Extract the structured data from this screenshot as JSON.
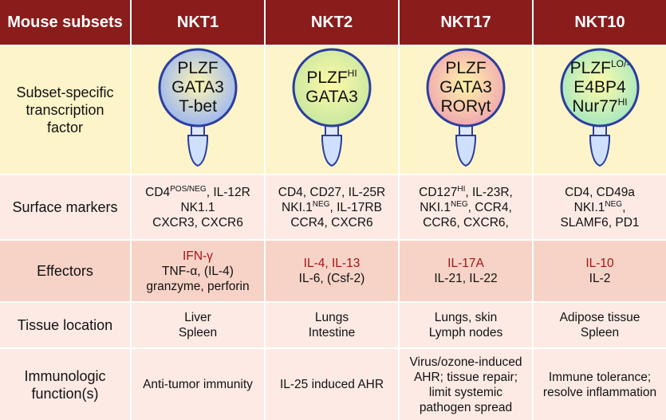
{
  "header": [
    "Mouse subsets",
    "NKT1",
    "NKT2",
    "NKT17",
    "NKT10"
  ],
  "rows": [
    {
      "label": [
        "Subset-specific",
        "transcription",
        "factor"
      ],
      "cells": [
        [
          [
            "PLZF"
          ],
          [
            "GATA3"
          ],
          [
            "T-bet"
          ]
        ],
        [
          [
            "PLZF",
            "HI"
          ],
          [
            "GATA3"
          ]
        ],
        [
          [
            "PLZF"
          ],
          [
            "GATA3"
          ],
          [
            "RORγt"
          ]
        ],
        [
          [
            "PLZF",
            "LO/-"
          ],
          [
            "E4BP4"
          ],
          [
            "Nur77",
            "HI"
          ]
        ]
      ]
    },
    {
      "label": [
        "Surface markers"
      ],
      "cells": [
        [
          [
            "CD4",
            "POS/NEG",
            ", IL-12R"
          ],
          [
            "NK1.1"
          ],
          [
            "CXCR3, CXCR6"
          ]
        ],
        [
          [
            "CD4, CD27, IL-25R"
          ],
          [
            "NKI.1",
            "NEG",
            ", IL-17RB"
          ],
          [
            "CCR4, CXCR6"
          ]
        ],
        [
          [
            "CD127",
            "HI",
            ", IL-23R,"
          ],
          [
            "NKI.1",
            "NEG",
            ", CCR4,"
          ],
          [
            "CCR6, CXCR6,"
          ]
        ],
        [
          [
            "CD4, CD49a"
          ],
          [
            "NKI.1",
            "NEG",
            ","
          ],
          [
            "SLAMF6, PD1"
          ]
        ]
      ]
    },
    {
      "label": [
        "Effectors"
      ],
      "cells": [
        [
          [
            "IFN-γ"
          ],
          [
            "TNF-α, (IL-4)"
          ],
          [
            "granzyme, perforin"
          ]
        ],
        [
          [
            "IL-4, IL-13"
          ],
          [
            "IL-6, (Csf-2)"
          ]
        ],
        [
          [
            "IL-17A"
          ],
          [
            "IL-21, IL-22"
          ]
        ],
        [
          [
            "IL-10"
          ],
          [
            "IL-2"
          ]
        ]
      ]
    },
    {
      "label": [
        "Tissue location"
      ],
      "cells": [
        [
          [
            "Liver"
          ],
          [
            "Spleen"
          ]
        ],
        [
          [
            "Lungs"
          ],
          [
            "Intestine"
          ]
        ],
        [
          [
            "Lungs, skin"
          ],
          [
            "Lymph nodes"
          ]
        ],
        [
          [
            "Adipose tissue"
          ],
          [
            "Spleen"
          ]
        ]
      ]
    },
    {
      "label": [
        "Immunologic",
        "function(s)"
      ],
      "cells": [
        [
          [
            "Anti-tumor immunity"
          ]
        ],
        [
          [
            "IL-25 induced AHR"
          ]
        ],
        [
          [
            "Virus/ozone-induced"
          ],
          [
            "AHR; tissue repair;"
          ],
          [
            "limit systemic"
          ],
          [
            "pathogen spread"
          ]
        ],
        [
          [
            "Immune tolerance;"
          ],
          [
            "resolve inflammation"
          ]
        ]
      ]
    }
  ]
}
